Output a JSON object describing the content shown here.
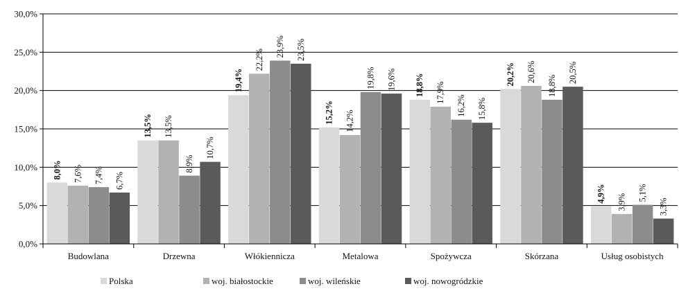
{
  "chart_data": {
    "type": "bar",
    "categories": [
      "Budowlana",
      "Drzewna",
      "Włókiennicza",
      "Metalowa",
      "Spożywcza",
      "Skórzana",
      "Usług osobistych"
    ],
    "series": [
      {
        "name": "Polska",
        "color": "#d9d9d9",
        "bold_labels": true,
        "values": [
          8.0,
          13.5,
          19.4,
          15.2,
          18.8,
          20.2,
          4.9
        ]
      },
      {
        "name": "woj. białostockie",
        "color": "#b2b2b2",
        "bold_labels": false,
        "values": [
          7.6,
          13.5,
          22.2,
          14.2,
          17.9,
          20.6,
          3.9
        ]
      },
      {
        "name": "woj. wileńskie",
        "color": "#8c8c8c",
        "bold_labels": false,
        "values": [
          7.4,
          8.9,
          23.9,
          19.8,
          16.2,
          18.8,
          5.1
        ]
      },
      {
        "name": "woj. nowogródzkie",
        "color": "#5a5a5a",
        "bold_labels": false,
        "values": [
          6.7,
          10.7,
          23.5,
          19.6,
          15.8,
          20.5,
          3.3
        ]
      }
    ],
    "data_labels": [
      [
        "8,0%",
        "13,5%",
        "19,4%",
        "15,2%",
        "18,8%",
        "20,2%",
        "4,9%"
      ],
      [
        "7,6%",
        "13,5%",
        "22,2%",
        "14,2%",
        "17,9%",
        "20,6%",
        "3,9%"
      ],
      [
        "7,4%",
        "8,9%",
        "23,9%",
        "19,8%",
        "16,2%",
        "18,8%",
        "5,1%"
      ],
      [
        "6,7%",
        "10,7%",
        "23,5%",
        "19,6%",
        "15,8%",
        "20,5%",
        "3,3%"
      ]
    ],
    "y_ticks": [
      "0,0%",
      "5,0%",
      "10,0%",
      "15,0%",
      "20,0%",
      "25,0%",
      "30,0%"
    ],
    "ylim": [
      0,
      30
    ],
    "grid": true,
    "legend_position": "bottom",
    "title": "",
    "xlabel": "",
    "ylabel": ""
  }
}
